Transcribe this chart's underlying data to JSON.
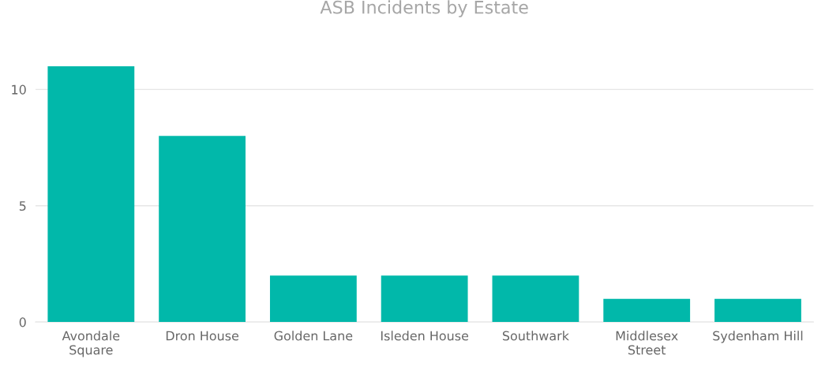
{
  "chart_data": {
    "type": "bar",
    "title": "ASB Incidents by Estate",
    "categories": [
      "Avondale Square",
      "Dron House",
      "Golden Lane",
      "Isleden House",
      "Southwark",
      "Middlesex Street",
      "Sydenham Hill"
    ],
    "values": [
      11,
      8,
      2,
      2,
      2,
      1,
      1
    ],
    "color": "#01b8aa",
    "ylim": [
      0,
      11
    ],
    "yticks": [
      0,
      5,
      10
    ],
    "grid": "y",
    "legend": false
  }
}
